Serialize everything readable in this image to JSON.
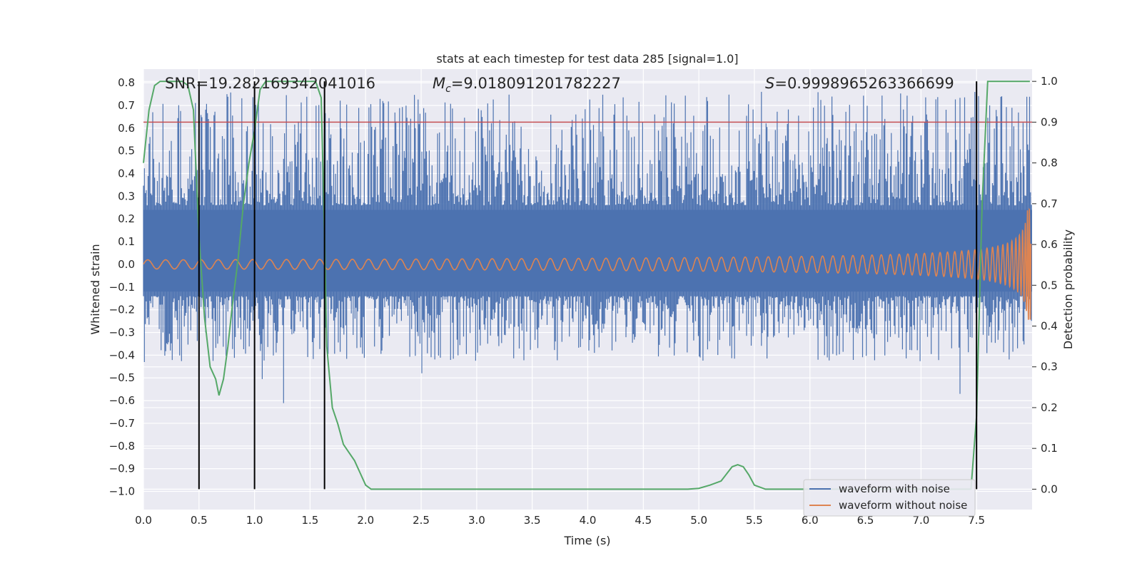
{
  "chart_data": {
    "type": "line",
    "title": "stats at each timestep for test data 285 [signal=1.0]",
    "xlabel": "Time (s)",
    "ylabel_left": "Whitened strain",
    "ylabel_right": "Detection probability",
    "xlim": [
      0.0,
      8.0
    ],
    "ylim_left": [
      -1.08,
      0.86
    ],
    "ylim_right": [
      -0.05,
      1.03
    ],
    "x_ticks": [
      0.0,
      0.5,
      1.0,
      1.5,
      2.0,
      2.5,
      3.0,
      3.5,
      4.0,
      4.5,
      5.0,
      5.5,
      6.0,
      6.5,
      7.0,
      7.5
    ],
    "x_tick_labels": [
      "0.0",
      "0.5",
      "1.0",
      "1.5",
      "2.0",
      "2.5",
      "3.0",
      "3.5",
      "4.0",
      "4.5",
      "5.0",
      "5.5",
      "6.0",
      "6.5",
      "7.0",
      "7.5"
    ],
    "y_left_ticks": [
      0.8,
      0.7,
      0.6,
      0.5,
      0.4,
      0.3,
      0.2,
      0.1,
      0.0,
      -0.1,
      -0.2,
      -0.3,
      -0.4,
      -0.5,
      -0.6,
      -0.7,
      -0.8,
      -0.9,
      -1.0
    ],
    "y_left_tick_labels": [
      "0.8",
      "0.7",
      "0.6",
      "0.5",
      "0.4",
      "0.3",
      "0.2",
      "0.1",
      "0.0",
      "−0.1",
      "−0.2",
      "−0.3",
      "−0.4",
      "−0.5",
      "−0.6",
      "−0.7",
      "−0.8",
      "−0.9",
      "−1.0"
    ],
    "y_right_ticks": [
      1.0,
      0.9,
      0.8,
      0.7,
      0.6,
      0.5,
      0.4,
      0.3,
      0.2,
      0.1,
      0.0
    ],
    "y_right_tick_labels": [
      "1.0",
      "0.9",
      "0.8",
      "0.7",
      "0.6",
      "0.5",
      "0.4",
      "0.3",
      "0.2",
      "0.1",
      "0.0"
    ],
    "grid": true,
    "legend_position": "lower-right",
    "annotations": {
      "snr": "SNR=19.282169342041016",
      "mc_prefix": "M",
      "mc_sub": "c",
      "mc_value": "=9.018091201782227",
      "s_prefix": "S",
      "s_value": "=0.9998965263366699"
    },
    "threshold": {
      "axis": "right",
      "value": 0.9,
      "color": "#c44e52"
    },
    "vertical_markers": {
      "x": [
        0.5,
        1.0,
        1.63,
        7.5
      ],
      "ymin_right": 0.0,
      "ymax_right": 1.0,
      "color": "#000000"
    },
    "series": [
      {
        "name": "waveform with noise",
        "axis": "left",
        "color": "#4c72b0",
        "kind": "noise",
        "envelope_core": [
          -0.12,
          0.24
        ],
        "spike_max": 0.76,
        "spike_min": -0.98
      },
      {
        "name": "waveform without noise",
        "axis": "left",
        "color": "#dd8452",
        "kind": "chirp",
        "start_amplitude": 0.02,
        "end_amplitude": 0.48,
        "merger_time": 7.98
      },
      {
        "name": "detection probability",
        "axis": "right",
        "color": "#55a868",
        "kind": "curve",
        "x": [
          0.0,
          0.05,
          0.1,
          0.15,
          0.25,
          0.3,
          0.35,
          0.4,
          0.45,
          0.5,
          0.55,
          0.6,
          0.65,
          0.68,
          0.72,
          0.76,
          0.8,
          0.85,
          0.9,
          0.95,
          1.0,
          1.05,
          1.1,
          1.15,
          1.2,
          1.3,
          1.4,
          1.45,
          1.5,
          1.55,
          1.6,
          1.63,
          1.65,
          1.7,
          1.75,
          1.8,
          1.85,
          1.9,
          1.95,
          2.0,
          2.05,
          2.1,
          3.0,
          4.0,
          4.9,
          5.0,
          5.1,
          5.2,
          5.3,
          5.35,
          5.4,
          5.45,
          5.5,
          5.6,
          6.0,
          7.0,
          7.45,
          7.5,
          7.55,
          7.6,
          7.98
        ],
        "y": [
          0.8,
          0.93,
          0.99,
          1.0,
          1.0,
          1.0,
          1.0,
          0.99,
          0.93,
          0.62,
          0.42,
          0.3,
          0.27,
          0.23,
          0.27,
          0.35,
          0.45,
          0.56,
          0.7,
          0.8,
          0.88,
          0.98,
          1.0,
          1.0,
          1.0,
          1.0,
          1.0,
          1.0,
          1.0,
          1.0,
          0.96,
          0.62,
          0.35,
          0.2,
          0.16,
          0.11,
          0.09,
          0.07,
          0.04,
          0.01,
          0.0,
          0.0,
          0.0,
          0.0,
          0.0,
          0.002,
          0.01,
          0.02,
          0.055,
          0.06,
          0.055,
          0.035,
          0.01,
          0.0,
          0.0,
          0.0,
          0.0,
          0.18,
          0.7,
          1.0,
          1.0
        ]
      }
    ]
  }
}
